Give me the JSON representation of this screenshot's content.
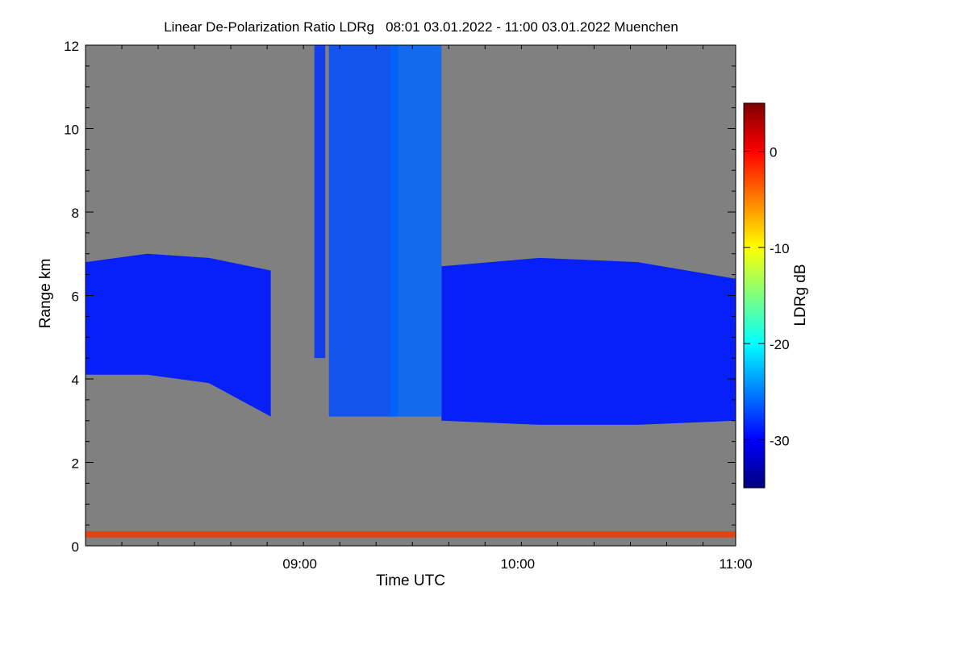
{
  "chart_data": {
    "type": "heatmap",
    "title": "Linear De-Polarization Ratio LDRg   08:01 03.01.2022 - 11:00 03.01.2022 Muenchen",
    "xlabel": "Time UTC",
    "ylabel": "Range km",
    "xlim": [
      "08:01",
      "11:00"
    ],
    "ylim": [
      0,
      12
    ],
    "x_ticks": [
      "09:00",
      "10:00",
      "11:00"
    ],
    "y_ticks": [
      0,
      2,
      4,
      6,
      8,
      10,
      12
    ],
    "colorbar": {
      "label": "LDRg dB",
      "range": [
        -35,
        5
      ],
      "ticks": [
        0,
        -10,
        -20,
        -30
      ],
      "colormap": "jet"
    },
    "background_color": "#808080",
    "layers": [
      {
        "feature": "cloud layer",
        "time_start": "08:01",
        "time_end": "08:52",
        "base_km": [
          4.1,
          4.1,
          3.9,
          3.1
        ],
        "top_km": [
          6.8,
          7.0,
          6.9,
          6.6
        ],
        "ldr_db": -29
      },
      {
        "feature": "cloud layer",
        "time_start": "09:39",
        "time_end": "11:00",
        "base_km": [
          3.0,
          2.9,
          2.9,
          3.0
        ],
        "top_km": [
          6.7,
          6.9,
          6.8,
          6.4
        ],
        "ldr_db": -29
      },
      {
        "feature": "fall streak",
        "time_start": "09:04",
        "time_end": "09:07",
        "base_km": 4.5,
        "top_km": 12,
        "ldr_db": -28
      },
      {
        "feature": "fall streak",
        "time_start": "09:08",
        "time_end": "09:27",
        "base_km": 3.1,
        "top_km": 12,
        "ldr_db": -27
      },
      {
        "feature": "fall streak",
        "time_start": "09:25",
        "time_end": "09:39",
        "base_km": 3.1,
        "top_km": 12,
        "ldr_db": -26
      },
      {
        "feature": "near-surface aerosol",
        "time_start": "08:01",
        "time_end": "11:00",
        "base_km": 0.2,
        "top_km": 0.35,
        "ldr_db": -2
      }
    ]
  }
}
